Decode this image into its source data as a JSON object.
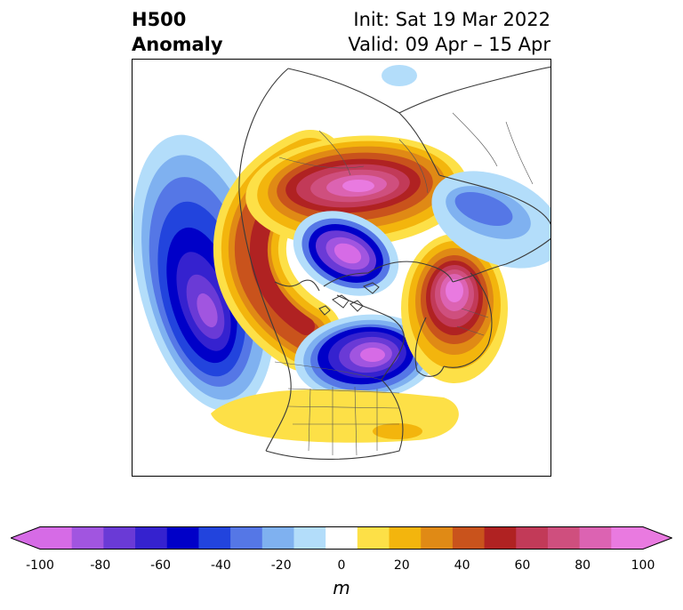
{
  "title": {
    "left_line1": "H500",
    "left_line2": "Anomaly",
    "right_line1": "Init: Sat 19 Mar 2022",
    "right_line2": "Valid: 09 Apr – 15 Apr"
  },
  "map": {
    "projection": "north-polar-stereographic",
    "field": "500 hPa geopotential height anomaly",
    "features": [
      {
        "kind": "negative",
        "region": "Gulf of Alaska / NE Pacific",
        "min_m": -100
      },
      {
        "kind": "positive",
        "region": "Western Canada / Alaska",
        "max_m": 80
      },
      {
        "kind": "positive",
        "region": "Eastern Siberia",
        "max_m": 100
      },
      {
        "kind": "negative",
        "region": "North Pole / Arctic Ocean",
        "min_m": -100
      },
      {
        "kind": "negative",
        "region": "Hudson Bay / Greenland",
        "min_m": -100
      },
      {
        "kind": "positive",
        "region": "Scandinavia / N Europe",
        "max_m": 100
      },
      {
        "kind": "negative",
        "region": "Central Asia",
        "min_m": -50
      },
      {
        "kind": "positive",
        "region": "Continental US / E Pacific",
        "max_m": 30
      }
    ]
  },
  "colorbar": {
    "units": "m",
    "ticks": [
      "-100",
      "-80",
      "-60",
      "-40",
      "-20",
      "0",
      "20",
      "40",
      "60",
      "80",
      "100"
    ],
    "levels": [
      -100,
      -90,
      -80,
      -70,
      -60,
      -50,
      -40,
      -30,
      -20,
      -10,
      10,
      20,
      30,
      40,
      50,
      60,
      70,
      80,
      90,
      100
    ],
    "colors": [
      "#d66be6",
      "#a155e0",
      "#6a3ad6",
      "#3522cf",
      "#0000c8",
      "#2244dd",
      "#5577e6",
      "#7fb1f0",
      "#b3ddfa",
      "#ffffff",
      "#fde047",
      "#f3b50d",
      "#e08a15",
      "#c9531c",
      "#b02222",
      "#c23a58",
      "#cf4f7e",
      "#dc63b2",
      "#e97ae0"
    ],
    "extend": "both"
  }
}
